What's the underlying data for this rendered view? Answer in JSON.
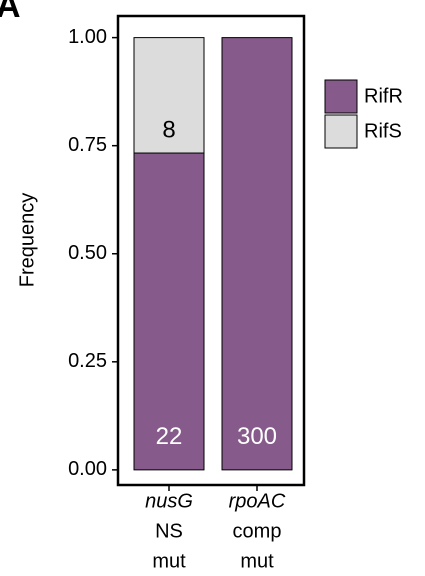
{
  "chart_data": {
    "type": "stacked_bar",
    "panel_label": "A",
    "ylabel": "Frequency",
    "categories": [
      [
        "nusG",
        "NS",
        "mut"
      ],
      [
        "rpoAC",
        "comp",
        "mut"
      ]
    ],
    "series": [
      {
        "name": "RifR",
        "color": "#865a8a",
        "values": [
          0.733,
          1.0
        ],
        "counts": [
          22,
          300
        ],
        "label_color": "#ffffff"
      },
      {
        "name": "RifS",
        "color": "#dcdcdc",
        "values": [
          0.267,
          0
        ],
        "counts": [
          8,
          null
        ],
        "label_color": "#000000"
      }
    ],
    "ylim": [
      -0.035,
      1.05
    ],
    "yticks": [
      {
        "value": 0,
        "label": "0.00"
      },
      {
        "value": 0.25,
        "label": "0.25"
      },
      {
        "value": 0.5,
        "label": "0.50"
      },
      {
        "value": 0.75,
        "label": "0.75"
      },
      {
        "value": 1,
        "label": "1.00"
      }
    ],
    "grid": false,
    "legend": "right"
  }
}
